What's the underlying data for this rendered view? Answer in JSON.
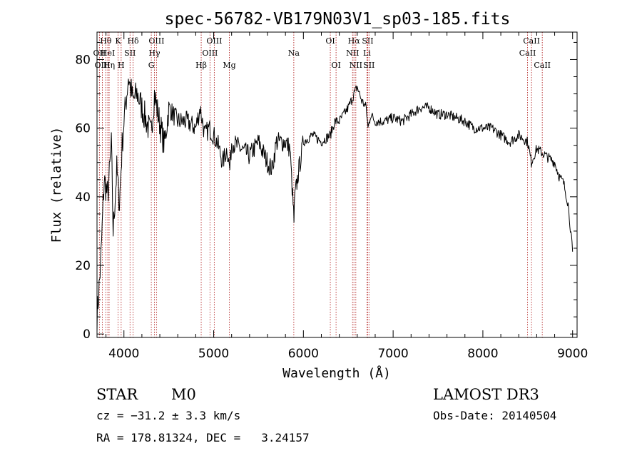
{
  "chart_data": {
    "type": "line",
    "title": "spec-56782-VB179N03V1_sp03-185.fits",
    "xlabel": "Wavelength (Å)",
    "ylabel": "Flux (relative)",
    "xlim": [
      3700,
      9050
    ],
    "ylim": [
      -1,
      88
    ],
    "x_ticks": [
      4000,
      5000,
      6000,
      7000,
      8000,
      9000
    ],
    "y_ticks": [
      0,
      20,
      40,
      60,
      80
    ],
    "series": [
      {
        "name": "flux",
        "x": [
          3700,
          3740,
          3780,
          3820,
          3860,
          3880,
          3920,
          3950,
          3980,
          4000,
          4050,
          4100,
          4150,
          4200,
          4250,
          4300,
          4340,
          4380,
          4450,
          4500,
          4600,
          4700,
          4800,
          4850,
          4900,
          4950,
          5000,
          5050,
          5100,
          5150,
          5180,
          5200,
          5300,
          5400,
          5500,
          5600,
          5650,
          5700,
          5800,
          5850,
          5880,
          5895,
          5905,
          5950,
          6000,
          6100,
          6200,
          6300,
          6350,
          6400,
          6450,
          6500,
          6550,
          6565,
          6600,
          6650,
          6700,
          6720,
          6750,
          6800,
          6900,
          7000,
          7100,
          7200,
          7300,
          7400,
          7500,
          7600,
          7700,
          7800,
          7900,
          8000,
          8100,
          8200,
          8300,
          8400,
          8500,
          8540,
          8600,
          8700,
          8800,
          8850,
          8900,
          8950,
          9000
        ],
        "y": [
          5,
          20,
          45,
          40,
          55,
          30,
          48,
          38,
          55,
          62,
          75,
          68,
          70,
          66,
          62,
          58,
          70,
          64,
          55,
          66,
          62,
          62,
          60,
          66,
          58,
          60,
          58,
          55,
          50,
          54,
          48,
          56,
          54,
          52,
          56,
          50,
          48,
          56,
          56,
          54,
          40,
          33,
          40,
          48,
          56,
          58,
          56,
          58,
          62,
          62,
          64,
          66,
          69,
          70,
          72,
          68,
          66,
          60,
          64,
          62,
          62,
          63,
          62,
          64,
          66,
          66,
          64,
          64,
          63,
          62,
          60,
          60,
          60,
          58,
          56,
          58,
          56,
          50,
          54,
          52,
          50,
          46,
          44,
          38,
          24
        ]
      }
    ],
    "line_markers": [
      {
        "label": "Hθ",
        "x": 3798,
        "row": 1
      },
      {
        "label": "OII",
        "x": 3727,
        "row": 2
      },
      {
        "label": "OIII",
        "x": 3760,
        "row": 3
      },
      {
        "label": "HeI",
        "x": 3820,
        "row": 2
      },
      {
        "label": "Hη",
        "x": 3835,
        "row": 3
      },
      {
        "label": "K",
        "x": 3934,
        "row": 1
      },
      {
        "label": "SII",
        "x": 4068,
        "row": 2
      },
      {
        "label": "H",
        "x": 3969,
        "row": 3
      },
      {
        "label": "Hδ",
        "x": 4102,
        "row": 1
      },
      {
        "label": "OIII",
        "x": 4363,
        "row": 1
      },
      {
        "label": "Hγ",
        "x": 4340,
        "row": 2
      },
      {
        "label": "G",
        "x": 4305,
        "row": 3
      },
      {
        "label": "OIII",
        "x": 5007,
        "row": 1
      },
      {
        "label": "OIII",
        "x": 4959,
        "row": 2
      },
      {
        "label": "Hβ",
        "x": 4861,
        "row": 3
      },
      {
        "label": "Mg",
        "x": 5175,
        "row": 3
      },
      {
        "label": "Na",
        "x": 5893,
        "row": 2
      },
      {
        "label": "OI",
        "x": 6300,
        "row": 1
      },
      {
        "label": "OI",
        "x": 6364,
        "row": 3
      },
      {
        "label": "Hα",
        "x": 6563,
        "row": 1
      },
      {
        "label": "SII",
        "x": 6717,
        "row": 1
      },
      {
        "label": "NII",
        "x": 6548,
        "row": 2
      },
      {
        "label": "Li",
        "x": 6708,
        "row": 2
      },
      {
        "label": "NII",
        "x": 6584,
        "row": 3
      },
      {
        "label": "SII",
        "x": 6731,
        "row": 3
      },
      {
        "label": "CaII",
        "x": 8542,
        "row": 1
      },
      {
        "label": "CaII",
        "x": 8498,
        "row": 2
      },
      {
        "label": "CaII",
        "x": 8662,
        "row": 3
      }
    ]
  },
  "info": {
    "object_class": "STAR",
    "subclass": "M0",
    "survey": "LAMOST DR3",
    "redshift": "cz = −31.2 ± 3.3 km/s",
    "obs_date": "Obs-Date: 20140504",
    "coords": "RA = 178.81324, DEC =   3.24157"
  },
  "colors": {
    "spectrum": "#000000",
    "marker": "#b22222",
    "axis": "#000000"
  }
}
